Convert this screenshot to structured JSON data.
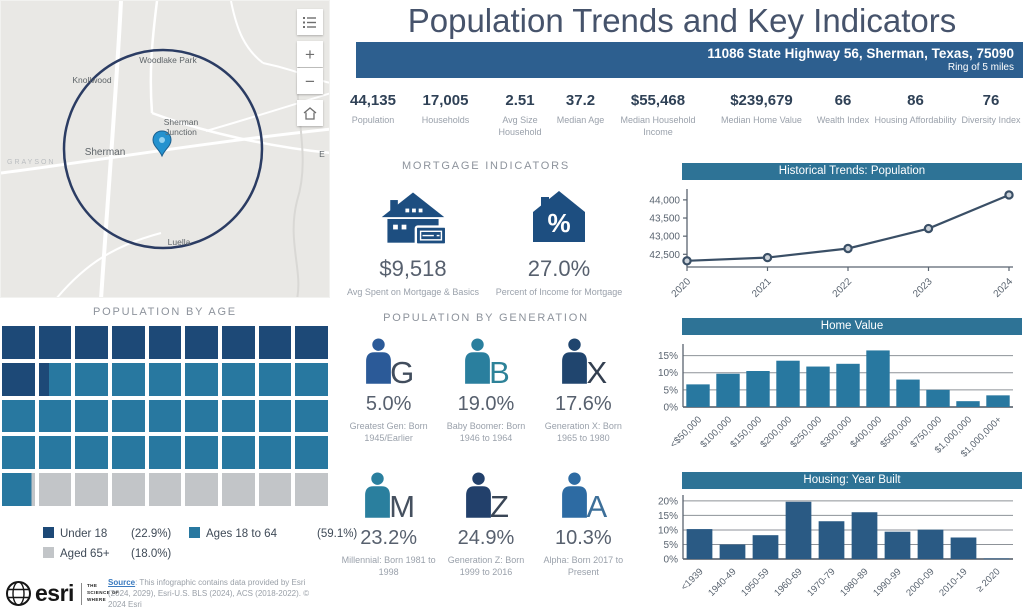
{
  "header": {
    "title": "Population Trends and Key Indicators",
    "address": "11086 State Highway 56, Sherman, Texas, 75090",
    "ring": "Ring of 5 miles"
  },
  "stats": [
    {
      "value": "44,135",
      "label": "Population"
    },
    {
      "value": "17,005",
      "label": "Households"
    },
    {
      "value": "2.51",
      "label": "Avg Size Household"
    },
    {
      "value": "37.2",
      "label": "Median Age"
    },
    {
      "value": "$55,468",
      "label": "Median Household Income"
    },
    {
      "value": "$239,679",
      "label": "Median Home Value"
    },
    {
      "value": "66",
      "label": "Wealth Index"
    },
    {
      "value": "86",
      "label": "Housing Affordability"
    },
    {
      "value": "76",
      "label": "Diversity Index"
    }
  ],
  "mortgage": {
    "heading": "MORTGAGE INDICATORS",
    "items": [
      {
        "icon": "house-money-icon",
        "value": "$9,518",
        "label": "Avg Spent on Mortgage & Basics"
      },
      {
        "icon": "house-percent-icon",
        "value": "27.0%",
        "label": "Percent of Income for Mortgage"
      }
    ]
  },
  "generation": {
    "heading": "POPULATION BY GENERATION",
    "items": [
      {
        "letter": "G",
        "value": "5.0%",
        "label": "Greatest Gen: Born 1945/Earlier",
        "person_color": "#2b5a98",
        "letter_color": "#414d5d"
      },
      {
        "letter": "B",
        "value": "19.0%",
        "label": "Baby Boomer: Born 1946 to 1964",
        "person_color": "#2a7f9e",
        "letter_color": "#2d8298"
      },
      {
        "letter": "X",
        "value": "17.6%",
        "label": "Generation X: Born 1965 to 1980",
        "person_color": "#20456e",
        "letter_color": "#333f50"
      },
      {
        "letter": "M",
        "value": "23.2%",
        "label": "Millennial: Born 1981 to 1998",
        "person_color": "#2a7f9e",
        "letter_color": "#45505f"
      },
      {
        "letter": "Z",
        "value": "24.9%",
        "label": "Generation Z: Born 1999 to 2016",
        "person_color": "#22406b",
        "letter_color": "#3a4656"
      },
      {
        "letter": "A",
        "value": "10.3%",
        "label": "Alpha: Born 2017 to Present",
        "person_color": "#2d6ba3",
        "letter_color": "#3d6f99"
      }
    ]
  },
  "age": {
    "heading": "POPULATION BY AGE",
    "grid": {
      "cols": 9,
      "rows": 5
    },
    "segments": [
      {
        "label": "Under 18",
        "pct": "(22.9%)",
        "value": 22.9,
        "color": "#1d4977"
      },
      {
        "label": "Ages 18 to 64",
        "pct": "(59.1%)",
        "value": 59.1,
        "color": "#2878a0"
      },
      {
        "label": "Aged 65+",
        "pct": "(18.0%)",
        "value": 18.0,
        "color": "#c2c5c8"
      }
    ]
  },
  "map": {
    "labels": [
      {
        "text": "Woodlake Park"
      },
      {
        "text": "Knollwood"
      },
      {
        "text": "Sherman Junction"
      },
      {
        "text": "Sherman"
      },
      {
        "text": "GRAYSON"
      },
      {
        "text": "Luella"
      },
      {
        "text": "E"
      }
    ],
    "controls": {
      "zoom_in": "+",
      "zoom_out": "−"
    }
  },
  "footer": {
    "logo": "esri",
    "tagline": "THE SCIENCE OF WHERE",
    "source_label": "Source",
    "source_text": ": This infographic contains data provided by Esri (2024, 2029), Esri-U.S. BLS (2024), ACS (2018-2022). © 2024 Esri"
  },
  "chart_data": [
    {
      "type": "line",
      "title": "Historical Trends: Population",
      "x": [
        "2020",
        "2021",
        "2022",
        "2023",
        "2024"
      ],
      "values": [
        42320,
        42410,
        42660,
        43210,
        44135
      ],
      "ylim": [
        42150,
        44300
      ],
      "yticks": [
        42500,
        43000,
        43500,
        44000
      ],
      "line_color": "#3a4f66",
      "legend_position": "none",
      "grid": false
    },
    {
      "type": "bar",
      "title": "Home Value",
      "categories": [
        "<$50,000",
        "$100,000",
        "$150,000",
        "$200,000",
        "$250,000",
        "$300,000",
        "$400,000",
        "$500,000",
        "$750,000",
        "$1,000,000",
        "$1,000,000+"
      ],
      "values": [
        6.6,
        9.7,
        10.5,
        13.5,
        11.8,
        12.6,
        16.5,
        8.0,
        5.0,
        1.7,
        3.4
      ],
      "ylim": [
        0,
        17.5
      ],
      "yticks": [
        0,
        5,
        10,
        15
      ],
      "tick_suffix": "%",
      "bar_color": "#2878a0",
      "grid": true
    },
    {
      "type": "bar",
      "title": "Housing: Year Built",
      "categories": [
        "<1939",
        "1940-49",
        "1950-59",
        "1960-69",
        "1970-79",
        "1980-89",
        "1990-99",
        "2000-09",
        "2010-19",
        "≥ 2020"
      ],
      "values": [
        10.3,
        5.0,
        8.2,
        19.7,
        13.0,
        16.1,
        9.4,
        10.1,
        7.4,
        0.2
      ],
      "ylim": [
        0,
        21
      ],
      "yticks": [
        0,
        5,
        10,
        15,
        20
      ],
      "tick_suffix": "%",
      "bar_color": "#2a5a84",
      "grid": true
    }
  ]
}
